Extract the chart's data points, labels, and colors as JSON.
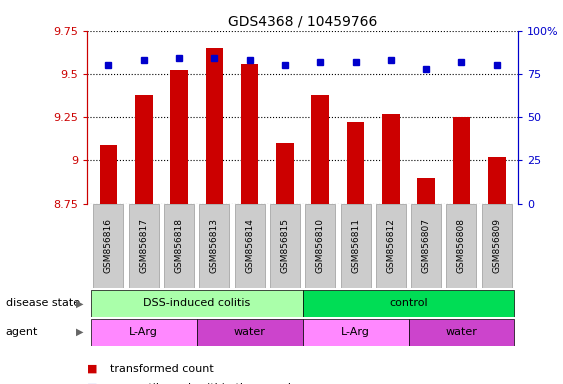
{
  "title": "GDS4368 / 10459766",
  "samples": [
    "GSM856816",
    "GSM856817",
    "GSM856818",
    "GSM856813",
    "GSM856814",
    "GSM856815",
    "GSM856810",
    "GSM856811",
    "GSM856812",
    "GSM856807",
    "GSM856808",
    "GSM856809"
  ],
  "transformed_counts": [
    9.09,
    9.38,
    9.52,
    9.65,
    9.56,
    9.1,
    9.38,
    9.22,
    9.27,
    8.9,
    9.25,
    9.02
  ],
  "percentile_ranks": [
    80,
    83,
    84,
    84,
    83,
    80,
    82,
    82,
    83,
    78,
    82,
    80
  ],
  "ylim_left": [
    8.75,
    9.75
  ],
  "ylim_right": [
    0,
    100
  ],
  "yticks_left": [
    8.75,
    9.0,
    9.25,
    9.5,
    9.75
  ],
  "ytick_labels_left": [
    "8.75",
    "9",
    "9.25",
    "9.5",
    "9.75"
  ],
  "yticks_right": [
    0,
    25,
    50,
    75,
    100
  ],
  "ytick_labels_right": [
    "0",
    "25",
    "50",
    "75",
    "100%"
  ],
  "bar_color": "#cc0000",
  "dot_color": "#0000cc",
  "disease_state_groups": [
    {
      "label": "DSS-induced colitis",
      "start": 0,
      "end": 5,
      "color": "#aaffaa"
    },
    {
      "label": "control",
      "start": 6,
      "end": 11,
      "color": "#00dd55"
    }
  ],
  "agent_groups": [
    {
      "label": "L-Arg",
      "start": 0,
      "end": 2,
      "color": "#ff88ff"
    },
    {
      "label": "water",
      "start": 3,
      "end": 5,
      "color": "#cc44cc"
    },
    {
      "label": "L-Arg",
      "start": 6,
      "end": 8,
      "color": "#ff88ff"
    },
    {
      "label": "water",
      "start": 9,
      "end": 11,
      "color": "#cc44cc"
    }
  ],
  "bar_width": 0.5,
  "sample_box_color": "#cccccc"
}
